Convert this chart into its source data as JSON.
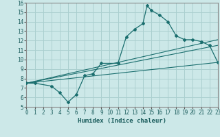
{
  "title": "",
  "xlabel": "Humidex (Indice chaleur)",
  "bg_color": "#cce8e8",
  "grid_color": "#aacfcf",
  "line_color": "#1a6e6e",
  "xlim": [
    0,
    23
  ],
  "ylim": [
    5,
    16
  ],
  "xticks": [
    0,
    1,
    2,
    3,
    4,
    5,
    6,
    7,
    8,
    9,
    10,
    11,
    12,
    13,
    14,
    15,
    16,
    17,
    18,
    19,
    20,
    21,
    22,
    23
  ],
  "yticks": [
    5,
    6,
    7,
    8,
    9,
    10,
    11,
    12,
    13,
    14,
    15,
    16
  ],
  "series1_x": [
    0,
    1,
    3,
    4,
    5,
    6,
    7,
    8,
    9,
    11,
    12,
    13,
    14,
    14.5,
    15,
    16,
    17,
    18,
    19,
    20,
    21,
    22,
    23
  ],
  "series1_y": [
    7.5,
    7.5,
    7.2,
    6.5,
    5.5,
    6.3,
    8.3,
    8.5,
    9.6,
    9.6,
    12.4,
    13.2,
    13.8,
    15.7,
    15.2,
    14.7,
    14.0,
    12.5,
    12.1,
    12.1,
    11.9,
    11.5,
    9.7
  ],
  "series2_x": [
    0,
    23
  ],
  "series2_y": [
    7.5,
    12.1
  ],
  "series3_x": [
    0,
    23
  ],
  "series3_y": [
    7.5,
    11.5
  ],
  "series4_x": [
    0,
    23
  ],
  "series4_y": [
    7.5,
    9.7
  ]
}
